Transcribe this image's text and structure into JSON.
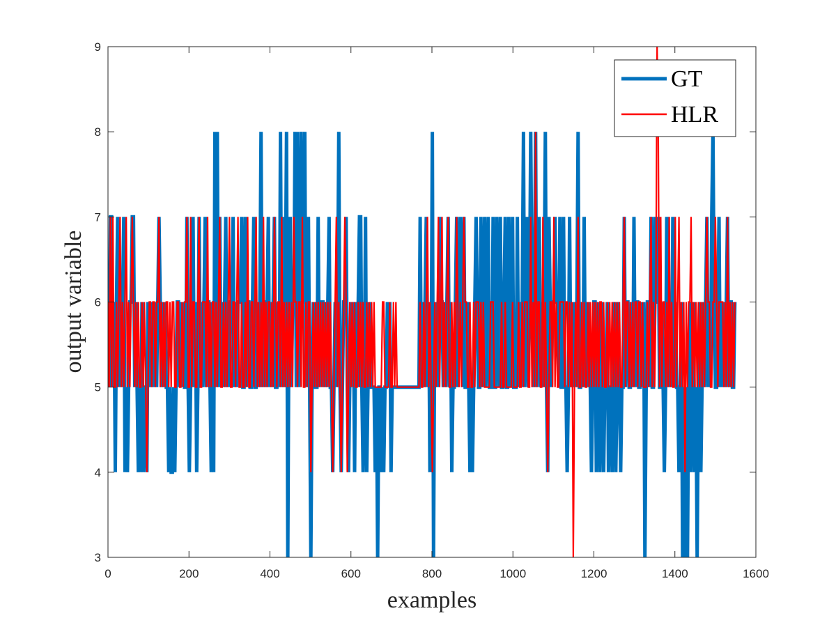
{
  "chart_data": {
    "type": "line",
    "title": "",
    "xlabel": "examples",
    "ylabel": "output variable",
    "xlim": [
      0,
      1600
    ],
    "ylim": [
      3,
      9
    ],
    "xticks": [
      0,
      200,
      400,
      600,
      800,
      1000,
      1200,
      1400,
      1600
    ],
    "yticks": [
      3,
      4,
      5,
      6,
      7,
      8,
      9
    ],
    "x_count": 1550,
    "legend_position": "top-right",
    "colors": {
      "GT": "#0072BD",
      "HLR": "#FF0000",
      "axes": "#262626"
    },
    "series": [
      {
        "name": "GT",
        "label": "GT",
        "base_levels": [
          5,
          6
        ],
        "events": [
          {
            "x": 5,
            "value": 7
          },
          {
            "x": 10,
            "value": 7
          },
          {
            "x": 18,
            "value": 4
          },
          {
            "x": 25,
            "value": 7
          },
          {
            "x": 38,
            "value": 7
          },
          {
            "x": 42,
            "value": 4
          },
          {
            "x": 48,
            "value": 4
          },
          {
            "x": 60,
            "value": 7
          },
          {
            "x": 64,
            "value": 7
          },
          {
            "x": 75,
            "value": 4
          },
          {
            "x": 82,
            "value": 4
          },
          {
            "x": 88,
            "value": 4
          },
          {
            "x": 95,
            "value": 4
          },
          {
            "x": 125,
            "value": 7
          },
          {
            "x": 150,
            "value": 4
          },
          {
            "x": 155,
            "value": 4
          },
          {
            "x": 160,
            "value": 4
          },
          {
            "x": 165,
            "value": 4
          },
          {
            "x": 195,
            "value": 7
          },
          {
            "x": 200,
            "value": 4
          },
          {
            "x": 210,
            "value": 7
          },
          {
            "x": 220,
            "value": 4
          },
          {
            "x": 225,
            "value": 7
          },
          {
            "x": 240,
            "value": 7
          },
          {
            "x": 255,
            "value": 4
          },
          {
            "x": 260,
            "value": 8
          },
          {
            "x": 262,
            "value": 4
          },
          {
            "x": 265,
            "value": 8
          },
          {
            "x": 270,
            "value": 8
          },
          {
            "x": 275,
            "value": 7
          },
          {
            "x": 290,
            "value": 7
          },
          {
            "x": 310,
            "value": 7
          },
          {
            "x": 330,
            "value": 7
          },
          {
            "x": 340,
            "value": 7
          },
          {
            "x": 360,
            "value": 7
          },
          {
            "x": 378,
            "value": 8
          },
          {
            "x": 395,
            "value": 7
          },
          {
            "x": 410,
            "value": 7
          },
          {
            "x": 425,
            "value": 8
          },
          {
            "x": 432,
            "value": 7
          },
          {
            "x": 440,
            "value": 8
          },
          {
            "x": 445,
            "value": 3
          },
          {
            "x": 450,
            "value": 7
          },
          {
            "x": 462,
            "value": 8
          },
          {
            "x": 468,
            "value": 8
          },
          {
            "x": 478,
            "value": 8
          },
          {
            "x": 485,
            "value": 8
          },
          {
            "x": 495,
            "value": 7
          },
          {
            "x": 500,
            "value": 3
          },
          {
            "x": 520,
            "value": 7
          },
          {
            "x": 545,
            "value": 7
          },
          {
            "x": 555,
            "value": 4
          },
          {
            "x": 570,
            "value": 8
          },
          {
            "x": 575,
            "value": 4
          },
          {
            "x": 588,
            "value": 7
          },
          {
            "x": 595,
            "value": 4
          },
          {
            "x": 610,
            "value": 4
          },
          {
            "x": 620,
            "value": 7
          },
          {
            "x": 625,
            "value": 7
          },
          {
            "x": 630,
            "value": 4
          },
          {
            "x": 635,
            "value": 7
          },
          {
            "x": 640,
            "value": 4
          },
          {
            "x": 660,
            "value": 4
          },
          {
            "x": 665,
            "value": 3
          },
          {
            "x": 675,
            "value": 4
          },
          {
            "x": 680,
            "value": 4
          },
          {
            "x": 700,
            "value": 4
          },
          {
            "x": 770,
            "value": 7
          },
          {
            "x": 785,
            "value": 7
          },
          {
            "x": 795,
            "value": 4
          },
          {
            "x": 800,
            "value": 8
          },
          {
            "x": 805,
            "value": 3
          },
          {
            "x": 820,
            "value": 7
          },
          {
            "x": 840,
            "value": 7
          },
          {
            "x": 850,
            "value": 4
          },
          {
            "x": 860,
            "value": 7
          },
          {
            "x": 870,
            "value": 7
          },
          {
            "x": 880,
            "value": 7
          },
          {
            "x": 895,
            "value": 4
          },
          {
            "x": 900,
            "value": 4
          },
          {
            "x": 910,
            "value": 7
          },
          {
            "x": 920,
            "value": 7
          },
          {
            "x": 930,
            "value": 7
          },
          {
            "x": 940,
            "value": 7
          },
          {
            "x": 950,
            "value": 7
          },
          {
            "x": 960,
            "value": 7
          },
          {
            "x": 970,
            "value": 7
          },
          {
            "x": 980,
            "value": 7
          },
          {
            "x": 990,
            "value": 7
          },
          {
            "x": 1000,
            "value": 7
          },
          {
            "x": 1010,
            "value": 7
          },
          {
            "x": 1025,
            "value": 8
          },
          {
            "x": 1035,
            "value": 7
          },
          {
            "x": 1045,
            "value": 8
          },
          {
            "x": 1055,
            "value": 8
          },
          {
            "x": 1065,
            "value": 7
          },
          {
            "x": 1080,
            "value": 8
          },
          {
            "x": 1085,
            "value": 4
          },
          {
            "x": 1090,
            "value": 7
          },
          {
            "x": 1105,
            "value": 7
          },
          {
            "x": 1115,
            "value": 7
          },
          {
            "x": 1125,
            "value": 7
          },
          {
            "x": 1135,
            "value": 4
          },
          {
            "x": 1140,
            "value": 7
          },
          {
            "x": 1160,
            "value": 8
          },
          {
            "x": 1175,
            "value": 7
          },
          {
            "x": 1195,
            "value": 4
          },
          {
            "x": 1205,
            "value": 4
          },
          {
            "x": 1215,
            "value": 4
          },
          {
            "x": 1225,
            "value": 4
          },
          {
            "x": 1235,
            "value": 4
          },
          {
            "x": 1245,
            "value": 4
          },
          {
            "x": 1255,
            "value": 4
          },
          {
            "x": 1265,
            "value": 4
          },
          {
            "x": 1275,
            "value": 7
          },
          {
            "x": 1300,
            "value": 7
          },
          {
            "x": 1325,
            "value": 3
          },
          {
            "x": 1340,
            "value": 7
          },
          {
            "x": 1350,
            "value": 7
          },
          {
            "x": 1360,
            "value": 7
          },
          {
            "x": 1375,
            "value": 4
          },
          {
            "x": 1380,
            "value": 7
          },
          {
            "x": 1395,
            "value": 7
          },
          {
            "x": 1410,
            "value": 4
          },
          {
            "x": 1420,
            "value": 3
          },
          {
            "x": 1425,
            "value": 3
          },
          {
            "x": 1430,
            "value": 3
          },
          {
            "x": 1440,
            "value": 4
          },
          {
            "x": 1450,
            "value": 4
          },
          {
            "x": 1455,
            "value": 3
          },
          {
            "x": 1465,
            "value": 4
          },
          {
            "x": 1480,
            "value": 7
          },
          {
            "x": 1490,
            "value": 7
          },
          {
            "x": 1495,
            "value": 8
          },
          {
            "x": 1510,
            "value": 7
          },
          {
            "x": 1530,
            "value": 7
          }
        ]
      },
      {
        "name": "HLR",
        "label": "HLR",
        "base_levels": [
          5,
          6
        ],
        "events": [
          {
            "x": 5,
            "value": 7
          },
          {
            "x": 12,
            "value": 7
          },
          {
            "x": 30,
            "value": 7
          },
          {
            "x": 45,
            "value": 7
          },
          {
            "x": 60,
            "value": 7
          },
          {
            "x": 95,
            "value": 4
          },
          {
            "x": 125,
            "value": 7
          },
          {
            "x": 195,
            "value": 7
          },
          {
            "x": 205,
            "value": 7
          },
          {
            "x": 225,
            "value": 7
          },
          {
            "x": 245,
            "value": 7
          },
          {
            "x": 275,
            "value": 7
          },
          {
            "x": 300,
            "value": 7
          },
          {
            "x": 320,
            "value": 7
          },
          {
            "x": 345,
            "value": 7
          },
          {
            "x": 365,
            "value": 7
          },
          {
            "x": 385,
            "value": 7
          },
          {
            "x": 410,
            "value": 7
          },
          {
            "x": 430,
            "value": 7
          },
          {
            "x": 460,
            "value": 7
          },
          {
            "x": 480,
            "value": 7
          },
          {
            "x": 500,
            "value": 4
          },
          {
            "x": 555,
            "value": 4
          },
          {
            "x": 565,
            "value": 7
          },
          {
            "x": 575,
            "value": 4
          },
          {
            "x": 585,
            "value": 7
          },
          {
            "x": 590,
            "value": 4
          },
          {
            "x": 790,
            "value": 7
          },
          {
            "x": 800,
            "value": 4
          },
          {
            "x": 815,
            "value": 7
          },
          {
            "x": 825,
            "value": 7
          },
          {
            "x": 840,
            "value": 7
          },
          {
            "x": 860,
            "value": 7
          },
          {
            "x": 880,
            "value": 7
          },
          {
            "x": 1045,
            "value": 7
          },
          {
            "x": 1055,
            "value": 8
          },
          {
            "x": 1075,
            "value": 7
          },
          {
            "x": 1085,
            "value": 4
          },
          {
            "x": 1100,
            "value": 7
          },
          {
            "x": 1150,
            "value": 3
          },
          {
            "x": 1160,
            "value": 7
          },
          {
            "x": 1275,
            "value": 7
          },
          {
            "x": 1340,
            "value": 7
          },
          {
            "x": 1355,
            "value": 9
          },
          {
            "x": 1358,
            "value": 8
          },
          {
            "x": 1365,
            "value": 7
          },
          {
            "x": 1385,
            "value": 7
          },
          {
            "x": 1400,
            "value": 7
          },
          {
            "x": 1410,
            "value": 7
          },
          {
            "x": 1425,
            "value": 4
          },
          {
            "x": 1440,
            "value": 7
          },
          {
            "x": 1480,
            "value": 7
          },
          {
            "x": 1500,
            "value": 7
          },
          {
            "x": 1530,
            "value": 7
          }
        ]
      }
    ]
  }
}
